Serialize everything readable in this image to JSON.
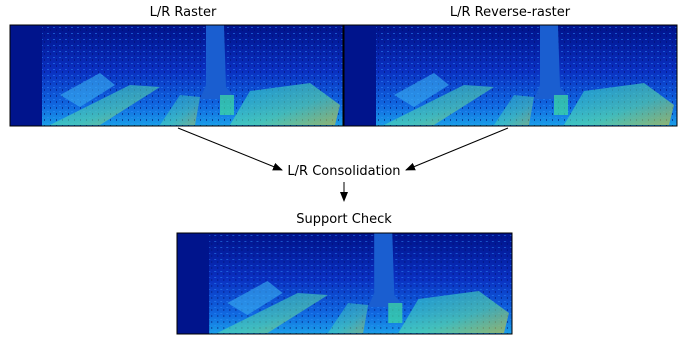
{
  "inputs": [
    {
      "label": "L/R Raster"
    },
    {
      "label": "L/R Reverse-raster"
    }
  ],
  "steps": [
    {
      "label": "L/R Consolidation"
    },
    {
      "label": "Support Check"
    }
  ]
}
